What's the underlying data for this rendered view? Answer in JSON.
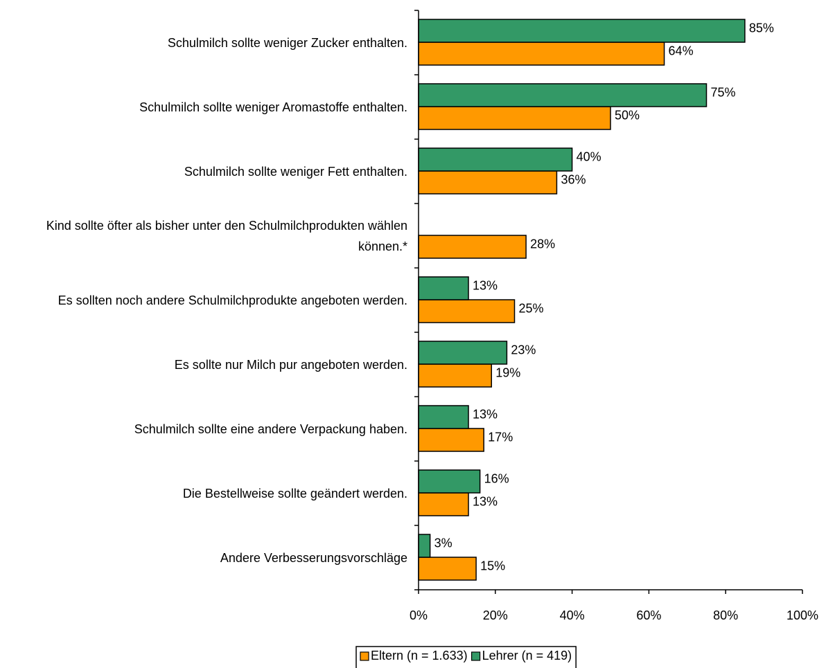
{
  "chart_data": {
    "type": "bar",
    "orientation": "horizontal",
    "categories": [
      "Schulmilch sollte weniger Zucker enthalten.",
      "Schulmilch sollte weniger Aromastoffe enthalten.",
      "Schulmilch sollte weniger Fett enthalten.",
      "Kind sollte öfter als bisher unter den Schulmilchprodukten wählen können.*",
      "Es sollten noch andere Schulmilchprodukte angeboten werden.",
      "Es sollte nur Milch pur angeboten werden.",
      "Schulmilch sollte eine andere Verpackung haben.",
      "Die Bestellweise sollte geändert werden.",
      "Andere Verbesserungsvorschläge"
    ],
    "series": [
      {
        "name": "Eltern (n = 1.633)",
        "color": "#ff9900",
        "values": [
          64,
          50,
          36,
          28,
          25,
          19,
          17,
          13,
          15
        ],
        "value_labels": [
          "64%",
          "50%",
          "36%",
          "28%",
          "25%",
          "19%",
          "17%",
          "13%",
          "15%"
        ]
      },
      {
        "name": "Lehrer (n = 419)",
        "color": "#339966",
        "values": [
          85,
          75,
          40,
          null,
          13,
          23,
          13,
          16,
          3
        ],
        "value_labels": [
          "85%",
          "75%",
          "40%",
          null,
          "13%",
          "23%",
          "13%",
          "16%",
          "3%"
        ]
      }
    ],
    "xlim": [
      0,
      100
    ],
    "xticks": [
      {
        "value": 0,
        "label": "0%"
      },
      {
        "value": 20,
        "label": "20%"
      },
      {
        "value": 40,
        "label": "40%"
      },
      {
        "value": 60,
        "label": "60%"
      },
      {
        "value": 80,
        "label": "80%"
      },
      {
        "value": 100,
        "label": "100%"
      }
    ],
    "legend": "bottom"
  }
}
